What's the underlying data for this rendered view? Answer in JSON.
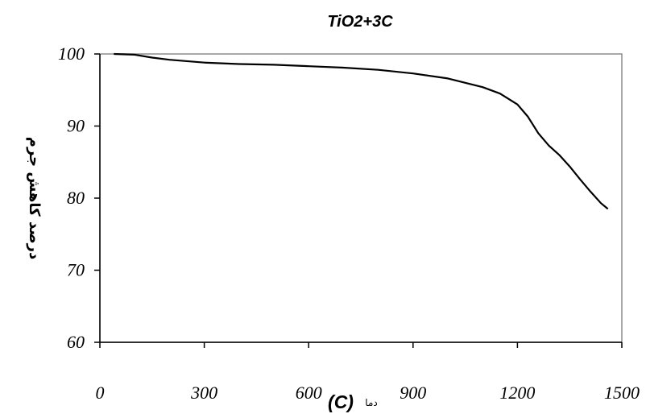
{
  "chart_data": {
    "type": "line",
    "title": "TiO2+3C",
    "xlabel": {
      "unit": "(C)",
      "word": "دما"
    },
    "ylabel": "درصد کاهش جرم",
    "xlim": [
      0,
      1500
    ],
    "ylim": [
      60,
      100
    ],
    "xticks": [
      "0",
      "300",
      "600",
      "900",
      "1200",
      "1500"
    ],
    "yticks": [
      "60",
      "70",
      "80",
      "90",
      "100"
    ],
    "grid": false,
    "series": [
      {
        "x": [
          40,
          100,
          150,
          200,
          300,
          400,
          500,
          600,
          700,
          800,
          900,
          1000,
          1100,
          1150,
          1200,
          1230,
          1260,
          1290,
          1320,
          1350,
          1380,
          1410,
          1440,
          1460
        ],
        "y": [
          100,
          99.9,
          99.5,
          99.2,
          98.8,
          98.6,
          98.5,
          98.3,
          98.1,
          97.8,
          97.3,
          96.6,
          95.4,
          94.5,
          93.0,
          91.3,
          89.0,
          87.3,
          86.0,
          84.4,
          82.6,
          80.9,
          79.3,
          78.5
        ]
      }
    ]
  }
}
